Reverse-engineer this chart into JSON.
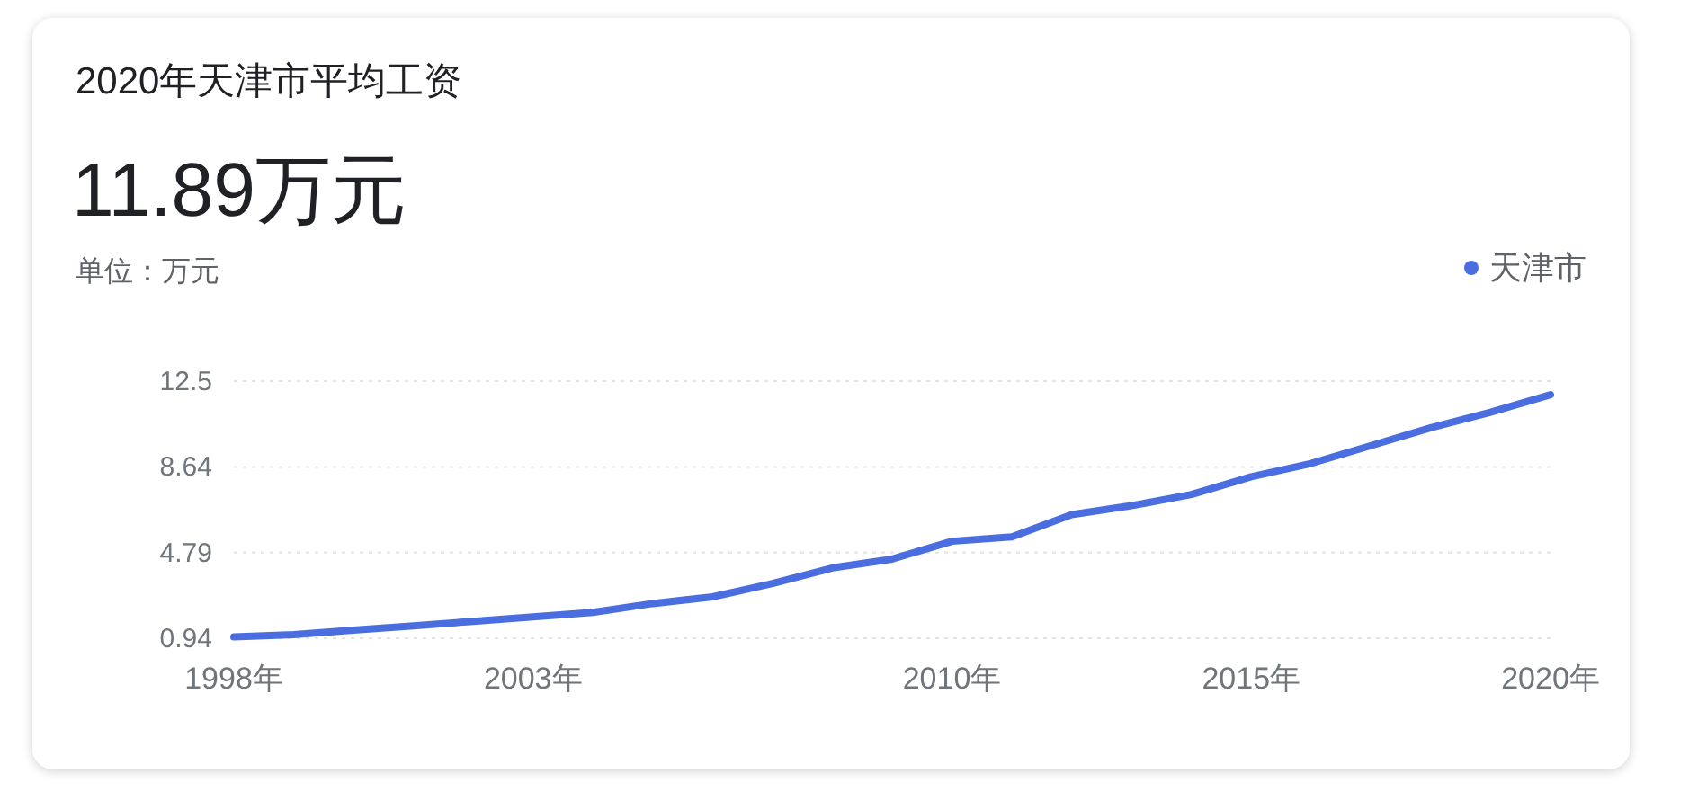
{
  "chart_data": {
    "type": "line",
    "title": "2020年天津市平均工资",
    "subtitle": "11.89万元",
    "annotations": [
      "单位：万元"
    ],
    "x": [
      1998,
      1999,
      2000,
      2001,
      2002,
      2003,
      2004,
      2005,
      2006,
      2007,
      2008,
      2009,
      2010,
      2011,
      2012,
      2013,
      2014,
      2015,
      2016,
      2017,
      2018,
      2019,
      2020
    ],
    "series": [
      {
        "name": "天津市",
        "color": "#4a6ee0",
        "values": [
          1.0,
          1.1,
          1.3,
          1.5,
          1.7,
          1.9,
          2.1,
          2.5,
          2.8,
          3.4,
          4.1,
          4.5,
          5.3,
          5.5,
          6.5,
          6.9,
          7.4,
          8.2,
          8.8,
          9.6,
          10.4,
          11.1,
          11.89
        ]
      }
    ],
    "xlim": [
      1998,
      2020
    ],
    "xticks": [
      {
        "value": 1998,
        "label": "1998年"
      },
      {
        "value": 2003,
        "label": "2003年"
      },
      {
        "value": 2010,
        "label": "2010年"
      },
      {
        "value": 2015,
        "label": "2015年"
      },
      {
        "value": 2020,
        "label": "2020年"
      }
    ],
    "ylim": [
      0.94,
      12.5
    ],
    "yticks": [
      0.94,
      4.79,
      8.64,
      12.5
    ],
    "grid": "y",
    "legend": "top right",
    "marker": "none",
    "line_style": "solid"
  }
}
